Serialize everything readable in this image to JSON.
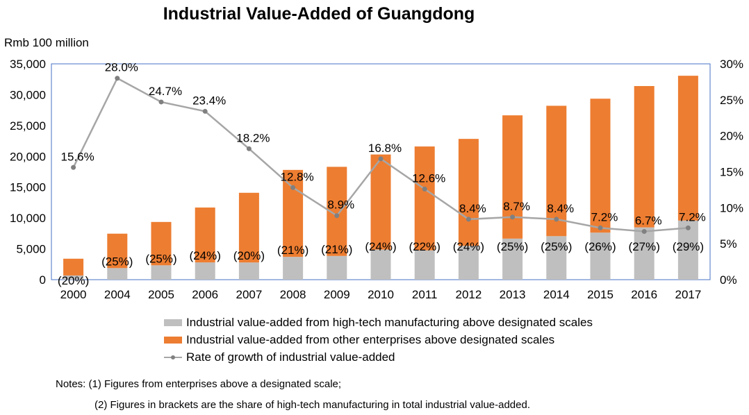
{
  "colors": {
    "high_tech": "#bfbfbf",
    "other": "#ed7d31",
    "growth": "#a6a6a6",
    "growth_marker": "#808080",
    "frame": "#4472c4"
  },
  "chart_data": {
    "type": "bar",
    "stacked": true,
    "title": "Industrial Value-Added of Guangdong",
    "ylabel": "Rmb 100 million",
    "ylim": [
      0,
      35000
    ],
    "y2lim": [
      0,
      30
    ],
    "left_ticks": [
      "0",
      "5,000",
      "10,000",
      "15,000",
      "20,000",
      "25,000",
      "30,000",
      "35,000"
    ],
    "right_ticks": [
      "0%",
      "5%",
      "10%",
      "15%",
      "20%",
      "25%",
      "30%"
    ],
    "categories": [
      "2000",
      "2004",
      "2005",
      "2006",
      "2007",
      "2008",
      "2009",
      "2010",
      "2011",
      "2012",
      "2013",
      "2014",
      "2015",
      "2016",
      "2017"
    ],
    "series": [
      {
        "name": "Industrial value-added from high-tech manufacturing above designated scales",
        "values": [
          680,
          1880,
          2330,
          2800,
          2790,
          3700,
          3850,
          4880,
          4760,
          5490,
          6660,
          7060,
          7630,
          8480,
          9590
        ]
      },
      {
        "name": "Industrial value-added from other enterprises above designated scales",
        "values": [
          2720,
          5580,
          7030,
          8900,
          11300,
          14100,
          14450,
          15420,
          16840,
          17340,
          19990,
          21140,
          21720,
          22920,
          23480
        ]
      }
    ],
    "share_labels": [
      "(20%)",
      "(25%)",
      "(25%)",
      "(24%)",
      "(20%)",
      "(21%)",
      "(21%)",
      "(24%)",
      "(22%)",
      "(24%)",
      "(25%)",
      "(25%)",
      "(26%)",
      "(27%)",
      "(29%)"
    ],
    "line": {
      "name": "Rate of growth of industrial value-added",
      "values": [
        15.6,
        28.0,
        24.7,
        23.4,
        18.2,
        12.8,
        8.9,
        16.8,
        12.6,
        8.4,
        8.7,
        8.4,
        7.2,
        6.7,
        7.2
      ],
      "labels": [
        "15.6%",
        "28.0%",
        "24.7%",
        "23.4%",
        "18.2%",
        "12.8%",
        "8.9%",
        "16.8%",
        "12.6%",
        "8.4%",
        "8.7%",
        "8.4%",
        "7.2%",
        "6.7%",
        "7.2%"
      ]
    },
    "legend_position": "bottom"
  },
  "notes": {
    "line1": "Notes:  (1) Figures  from  enterprises   above  a designated  scale;",
    "line2": "(2) Figures in brackets are the share of high-tech manufacturing  in total industrial value-added."
  }
}
